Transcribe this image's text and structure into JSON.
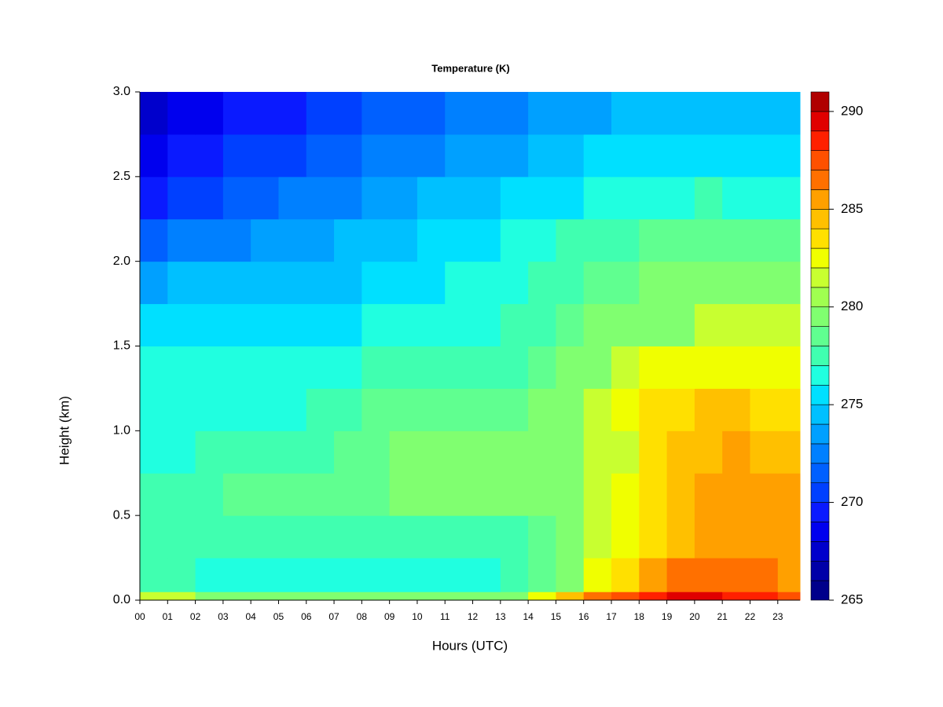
{
  "chart_data": {
    "type": "heatmap",
    "title": "Temperature (K)",
    "x_label": "Hours (UTC)",
    "y_label": "Height (km)",
    "x": [
      0,
      1,
      2,
      3,
      4,
      5,
      6,
      7,
      8,
      9,
      10,
      11,
      12,
      13,
      14,
      15,
      16,
      17,
      18,
      19,
      20,
      21,
      22,
      23
    ],
    "y": [
      0,
      0.05,
      0.25,
      0.5,
      0.75,
      1.0,
      1.25,
      1.5,
      1.75,
      2.0,
      2.25,
      2.5,
      2.75
    ],
    "z": [
      [
        281,
        281,
        280,
        279,
        279,
        279,
        279,
        279,
        279,
        279,
        279,
        279,
        279,
        280,
        282,
        284,
        286,
        287,
        288,
        289,
        289,
        288,
        288,
        287
      ],
      [
        277,
        277,
        276,
        276,
        276,
        276,
        276,
        276,
        276,
        276,
        276,
        276,
        276,
        277,
        278,
        280,
        282,
        283,
        285,
        286,
        286,
        286,
        286,
        285
      ],
      [
        277,
        277,
        277,
        277,
        277,
        277,
        277,
        277,
        277,
        277,
        277,
        277,
        277,
        277,
        278,
        279,
        281,
        282,
        283,
        284,
        285,
        285,
        285,
        285
      ],
      [
        277,
        277,
        277,
        278,
        278,
        278,
        278,
        278,
        278,
        279,
        279,
        279,
        279,
        279,
        279,
        280,
        281,
        282,
        283,
        284,
        285,
        285,
        285,
        285
      ],
      [
        276,
        276,
        277,
        277,
        277,
        277,
        277,
        278,
        278,
        279,
        279,
        279,
        279,
        279,
        279,
        280,
        281,
        281,
        283,
        284,
        284,
        285,
        284,
        284
      ],
      [
        276,
        276,
        276,
        276,
        276,
        276,
        277,
        277,
        278,
        278,
        278,
        278,
        278,
        278,
        279,
        280,
        281,
        282,
        283,
        283,
        284,
        284,
        283,
        283
      ],
      [
        276,
        276,
        276,
        276,
        276,
        276,
        276,
        276,
        277,
        277,
        277,
        277,
        277,
        277,
        278,
        279,
        280,
        281,
        282,
        282,
        282,
        282,
        282,
        282
      ],
      [
        275,
        275,
        275,
        275,
        275,
        275,
        275,
        275,
        276,
        276,
        276,
        276,
        276,
        277,
        277,
        278,
        279,
        279,
        280,
        280,
        281,
        281,
        281,
        281
      ],
      [
        273,
        274,
        274,
        274,
        274,
        274,
        274,
        274,
        275,
        275,
        275,
        276,
        276,
        276,
        277,
        277,
        278,
        278,
        279,
        279,
        279,
        280,
        280,
        280
      ],
      [
        271,
        272,
        272,
        272,
        273,
        273,
        273,
        274,
        274,
        274,
        275,
        275,
        275,
        276,
        276,
        277,
        277,
        277,
        278,
        278,
        278,
        278,
        278,
        278
      ],
      [
        269,
        270,
        270,
        271,
        271,
        272,
        272,
        272,
        273,
        273,
        274,
        274,
        274,
        275,
        275,
        275,
        276,
        276,
        276,
        276,
        277,
        276,
        276,
        276
      ],
      [
        268,
        269,
        269,
        270,
        270,
        270,
        271,
        271,
        272,
        272,
        272,
        273,
        273,
        273,
        274,
        274,
        275,
        275,
        275,
        275,
        275,
        275,
        275,
        275
      ],
      [
        267,
        268,
        268,
        269,
        269,
        269,
        270,
        270,
        271,
        271,
        271,
        272,
        272,
        272,
        273,
        273,
        273,
        274,
        274,
        274,
        274,
        274,
        274,
        274
      ]
    ],
    "xlim": [
      0,
      23.8
    ],
    "xticks": [
      {
        "value": 0,
        "label": "00"
      },
      {
        "value": 1,
        "label": "01"
      },
      {
        "value": 2,
        "label": "02"
      },
      {
        "value": 3,
        "label": "03"
      },
      {
        "value": 4,
        "label": "04"
      },
      {
        "value": 5,
        "label": "05"
      },
      {
        "value": 6,
        "label": "06"
      },
      {
        "value": 7,
        "label": "07"
      },
      {
        "value": 8,
        "label": "08"
      },
      {
        "value": 9,
        "label": "09"
      },
      10,
      11,
      12,
      13,
      14,
      15,
      16,
      17,
      18,
      19,
      20,
      21,
      22,
      23
    ],
    "ylim": [
      0,
      3
    ],
    "yticks": [
      {
        "value": 0,
        "label": "0.0"
      },
      0.5,
      {
        "value": 1,
        "label": "1.0"
      },
      1.5,
      {
        "value": 2,
        "label": "2.0"
      },
      2.5,
      {
        "value": 3,
        "label": "3.0"
      }
    ],
    "clim": [
      265,
      291
    ],
    "cticks": [
      265,
      270,
      275,
      280,
      285,
      290
    ],
    "colors": [
      "#00008b",
      "#0000a8",
      "#0000cc",
      "#0000ee",
      "#0a1aff",
      "#0040ff",
      "#0060ff",
      "#0080ff",
      "#00a0ff",
      "#00c0ff",
      "#00e0ff",
      "#20ffe0",
      "#40ffb0",
      "#60ff90",
      "#80ff70",
      "#a0ff50",
      "#c8ff30",
      "#f0ff00",
      "#ffe000",
      "#ffc000",
      "#ffa000",
      "#ff7000",
      "#ff5000",
      "#ff2000",
      "#e00000",
      "#b00000"
    ]
  }
}
